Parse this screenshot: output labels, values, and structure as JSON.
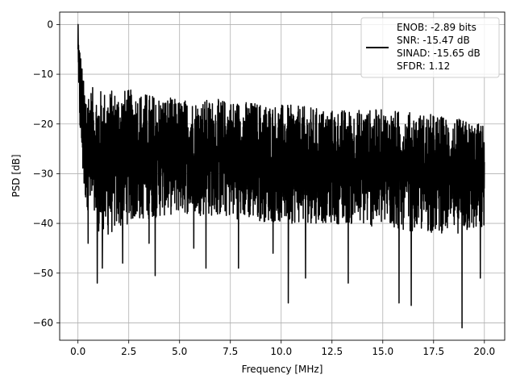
{
  "chart_data": {
    "type": "line",
    "title": "",
    "xlabel": "Frequency [MHz]",
    "ylabel": "PSD [dB]",
    "xlim": [
      -0.9,
      21.0
    ],
    "ylim": [
      -63.5,
      2.5
    ],
    "xticks": [
      0.0,
      2.5,
      5.0,
      7.5,
      10.0,
      12.5,
      15.0,
      17.5,
      20.0
    ],
    "xtick_labels": [
      "0.0",
      "2.5",
      "5.0",
      "7.5",
      "10.0",
      "12.5",
      "15.0",
      "17.5",
      "20.0"
    ],
    "yticks": [
      0,
      -10,
      -20,
      -30,
      -40,
      -50,
      -60
    ],
    "ytick_labels": [
      "0",
      "−10",
      "−20",
      "−30",
      "−40",
      "−50",
      "−60"
    ],
    "grid": true,
    "legend_position": "top-right",
    "line_color": "#000000",
    "legend_lines": [
      "ENOB: -2.89 bits",
      "SNR: -15.47 dB",
      "SINAD: -15.65 dB",
      "SFDR: 1.12"
    ],
    "series": [
      {
        "x_range": [
          0.0,
          20.0
        ],
        "envelope_points": [
          {
            "x": 0.0,
            "y": -5,
            "min_y": -16,
            "max_y": 0
          },
          {
            "x": 0.3,
            "y": -20,
            "min_y": -35,
            "max_y": -12
          },
          {
            "x": 1.0,
            "y": -24,
            "min_y": -44,
            "max_y": -13
          },
          {
            "x": 2.5,
            "y": -25,
            "min_y": -40,
            "max_y": -13
          },
          {
            "x": 5.0,
            "y": -25,
            "min_y": -38,
            "max_y": -15
          },
          {
            "x": 7.5,
            "y": -26,
            "min_y": -39,
            "max_y": -15
          },
          {
            "x": 10.0,
            "y": -26,
            "min_y": -40,
            "max_y": -16
          },
          {
            "x": 12.5,
            "y": -27,
            "min_y": -40,
            "max_y": -17
          },
          {
            "x": 15.0,
            "y": -27,
            "min_y": -41,
            "max_y": -17
          },
          {
            "x": 17.5,
            "y": -27,
            "min_y": -42,
            "max_y": -18
          },
          {
            "x": 20.0,
            "y": -28,
            "min_y": -42,
            "max_y": -20
          }
        ],
        "deep_dips": [
          {
            "x": 0.5,
            "y": -44
          },
          {
            "x": 0.95,
            "y": -52
          },
          {
            "x": 1.2,
            "y": -49
          },
          {
            "x": 2.2,
            "y": -48
          },
          {
            "x": 3.5,
            "y": -44
          },
          {
            "x": 3.8,
            "y": -50.5
          },
          {
            "x": 5.7,
            "y": -45
          },
          {
            "x": 6.3,
            "y": -49
          },
          {
            "x": 7.9,
            "y": -49
          },
          {
            "x": 9.6,
            "y": -46
          },
          {
            "x": 10.35,
            "y": -56
          },
          {
            "x": 11.2,
            "y": -51
          },
          {
            "x": 13.3,
            "y": -52
          },
          {
            "x": 15.8,
            "y": -56
          },
          {
            "x": 16.4,
            "y": -56.5
          },
          {
            "x": 18.9,
            "y": -61
          },
          {
            "x": 19.8,
            "y": -51
          }
        ]
      }
    ]
  }
}
